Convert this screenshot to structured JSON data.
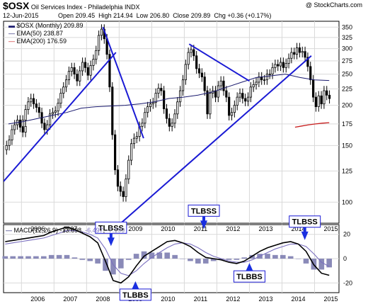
{
  "header": {
    "symbol": "$OSX",
    "name": "Oil Services Index - Philadelphia  INDX",
    "date": "12-Jun-2015",
    "open_label": "Open",
    "open": "209.45",
    "high_label": "High",
    "high": "214.94",
    "low_label": "Low",
    "low": "206.80",
    "close_label": "Close",
    "close": "209.89",
    "chg_label": "Chg",
    "chg": "+0.36 (+0.17%)",
    "brand": "@ StockCharts.com"
  },
  "legend": {
    "price": "$OSX (Monthly) 209.89",
    "ema50": "EMA(50) 238.87",
    "ema200": "EMA(200) 176.59",
    "macd_name": "MACD(12,26,9)",
    "macd_v1": "-13.698",
    "macd_v2": "-6.497",
    "macd_v3": "-7.199"
  },
  "colors": {
    "up": "#000000",
    "down": "#000000",
    "ema50": "#1a1a6e",
    "ema200": "#c81e1e",
    "trendline": "#1a1ad4",
    "macd": "#000000",
    "signal": "#7a6fbf",
    "hist": "#8a8ab8",
    "grid": "#d9d9d9",
    "callout_bg": "#ffffff",
    "callout_border": "#1a1ad4",
    "arrow": "#1a2fe0"
  },
  "annotations": [
    {
      "text": "TLBSS",
      "t": 2008.75,
      "v": 8,
      "kind": "top"
    },
    {
      "text": "TLBBS",
      "t": 2009.5,
      "v": -18,
      "kind": "bottom"
    },
    {
      "text": "TLBSS",
      "t": 2011.6,
      "v": 22,
      "kind": "top"
    },
    {
      "text": "TLBBS",
      "t": 2013.0,
      "v": -3,
      "kind": "bottom"
    },
    {
      "text": "TLBSS",
      "t": 2014.7,
      "v": 13,
      "kind": "top"
    }
  ],
  "chart_data": [
    {
      "type": "candlestick",
      "title": "",
      "period": "monthly",
      "yscale": "log",
      "ylim": [
        86,
        365
      ],
      "xlim": [
        2005.45,
        2015.75
      ],
      "yticks": [
        100,
        125,
        150,
        175,
        200,
        225,
        250,
        275,
        300,
        325,
        350
      ],
      "xticks": [
        "2006",
        "2007",
        "2008",
        "2009",
        "2010",
        "2011",
        "2012",
        "2013",
        "2014",
        "2015"
      ],
      "ohlc_by_year": [
        {
          "year": 2005.5,
          "closes": [
            150,
            156,
            168,
            174,
            180,
            171,
            165,
            172
          ]
        },
        {
          "year": 2006,
          "closes": [
            180,
            194,
            205,
            210,
            202,
            197,
            190,
            176,
            168,
            174,
            188,
            190
          ]
        },
        {
          "year": 2007,
          "closes": [
            192,
            203,
            218,
            228,
            240,
            255,
            262,
            250,
            238,
            256,
            272,
            262
          ]
        },
        {
          "year": 2008,
          "closes": [
            248,
            266,
            278,
            296,
            330,
            345,
            322,
            288,
            228,
            162,
            126,
            112
          ]
        },
        {
          "year": 2009,
          "closes": [
            108,
            104,
            118,
            135,
            152,
            158,
            160,
            172,
            176,
            190,
            198,
            202
          ]
        },
        {
          "year": 2010,
          "closes": [
            204,
            218,
            226,
            222,
            195,
            182,
            172,
            176,
            188,
            205,
            222,
            240
          ]
        },
        {
          "year": 2011,
          "closes": [
            268,
            292,
            298,
            285,
            260,
            252,
            245,
            222,
            188,
            218,
            222,
            212
          ]
        },
        {
          "year": 2012,
          "closes": [
            230,
            238,
            222,
            212,
            186,
            190,
            200,
            212,
            218,
            210,
            206,
            212
          ]
        },
        {
          "year": 2013,
          "closes": [
            228,
            232,
            236,
            245,
            240,
            240,
            250,
            250,
            262,
            268,
            265,
            272
          ]
        },
        {
          "year": 2014,
          "closes": [
            262,
            270,
            280,
            292,
            288,
            302,
            292,
            294,
            282,
            264,
            240,
            212
          ]
        },
        {
          "year": 2015,
          "closes": [
            198,
            214,
            202,
            222,
            215,
            209.89
          ]
        }
      ],
      "series": [
        {
          "name": "EMA(50)",
          "values": [
            175,
            178,
            182,
            186,
            190,
            196,
            198,
            199,
            200,
            202,
            205,
            210,
            212,
            215,
            220,
            228,
            236,
            244,
            247,
            250,
            244,
            240,
            238.87
          ]
        },
        {
          "name": "EMA(200)",
          "values": [
            171,
            172.5,
            174,
            175,
            176,
            176.59
          ]
        }
      ],
      "trendlines": [
        {
          "from": [
            2005.45,
            116
          ],
          "to": [
            2008.9,
            292
          ]
        },
        {
          "from": [
            2008.5,
            350
          ],
          "to": [
            2009.75,
            158
          ]
        },
        {
          "from": [
            2009.05,
            86
          ],
          "to": [
            2014.9,
            285
          ]
        },
        {
          "from": [
            2011.15,
            310
          ],
          "to": [
            2013.0,
            238
          ]
        }
      ]
    },
    {
      "type": "line",
      "title": "MACD(12,26,9)",
      "ylim": [
        -28,
        28
      ],
      "yticks": [
        20,
        0,
        -20
      ],
      "xticks": [
        "2006",
        "2007",
        "2008",
        "2009",
        "2010",
        "2011",
        "2012",
        "2013",
        "2014",
        "2015"
      ],
      "series": [
        {
          "name": "MACD",
          "values": [
            14,
            15,
            16,
            17,
            18,
            19,
            22,
            24,
            26,
            24,
            21,
            18,
            13,
            -2,
            -18,
            -20,
            -15,
            -6,
            2,
            6,
            10,
            14,
            15,
            13,
            10,
            5,
            1,
            0,
            -1,
            -3,
            -4,
            -2,
            2,
            6,
            9,
            11,
            13,
            14,
            12,
            6,
            -5,
            -12,
            -13.698
          ]
        },
        {
          "name": "Signal",
          "values": [
            12,
            13,
            14,
            15,
            16,
            17,
            19,
            21,
            23,
            23,
            22,
            20,
            17,
            8,
            -5,
            -12,
            -14,
            -10,
            -4,
            1,
            5,
            9,
            12,
            13,
            12,
            9,
            5,
            2,
            0,
            -2,
            -3,
            -3,
            -1,
            2,
            5,
            8,
            10,
            12,
            12,
            10,
            4,
            -3,
            -6.497
          ]
        },
        {
          "name": "Histogram",
          "values": [
            2,
            2,
            2,
            2,
            2,
            2,
            3,
            3,
            3,
            1,
            -1,
            -2,
            -4,
            -10,
            -13,
            -8,
            -1,
            4,
            6,
            5,
            5,
            5,
            3,
            0,
            -2,
            -4,
            -4,
            -2,
            -1,
            -1,
            -1,
            1,
            3,
            4,
            4,
            3,
            3,
            2,
            0,
            -4,
            -9,
            -9,
            -7.199
          ]
        }
      ]
    }
  ]
}
